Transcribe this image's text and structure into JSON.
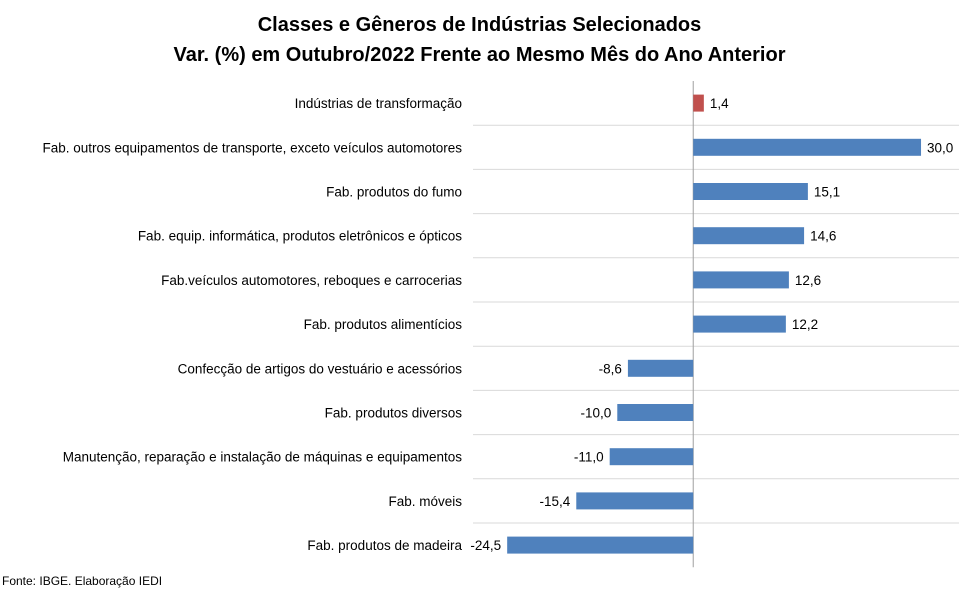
{
  "chart_data": {
    "type": "bar",
    "orientation": "horizontal",
    "title": "Classes e Gêneros de Indústrias Selecionados",
    "subtitle": "Var. (%) em Outubro/2022 Frente ao Mesmo Mês do Ano Anterior",
    "categories": [
      "Indústrias de transformação",
      "Fab. outros equipamentos de transporte, exceto veículos automotores",
      "Fab. produtos do fumo",
      "Fab. equip. informática, produtos eletrônicos e ópticos",
      "Fab.veículos automotores, reboques e carrocerias",
      "Fab. produtos alimentícios",
      "Confecção de artigos do vestuário e acessórios",
      "Fab. produtos diversos",
      "Manutenção, reparação e instalação de máquinas e equipamentos",
      "Fab. móveis",
      "Fab. produtos de madeira"
    ],
    "values": [
      1.4,
      30.0,
      15.1,
      14.6,
      12.6,
      12.2,
      -8.6,
      -10.0,
      -11.0,
      -15.4,
      -24.5
    ],
    "value_labels": [
      "1,4",
      "30,0",
      "15,1",
      "14,6",
      "12,6",
      "12,2",
      "-8,6",
      "-10,0",
      "-11,0",
      "-15,4",
      "-24,5"
    ],
    "xlim": [
      -29,
      35
    ],
    "grid": "horizontal-separators",
    "colors": {
      "highlight": "#C0504D",
      "bars": "#4F81BD",
      "axis": "#A0A0A0",
      "grid": "#D9D9D9"
    }
  },
  "source": "Fonte: IBGE. Elaboração IEDI"
}
